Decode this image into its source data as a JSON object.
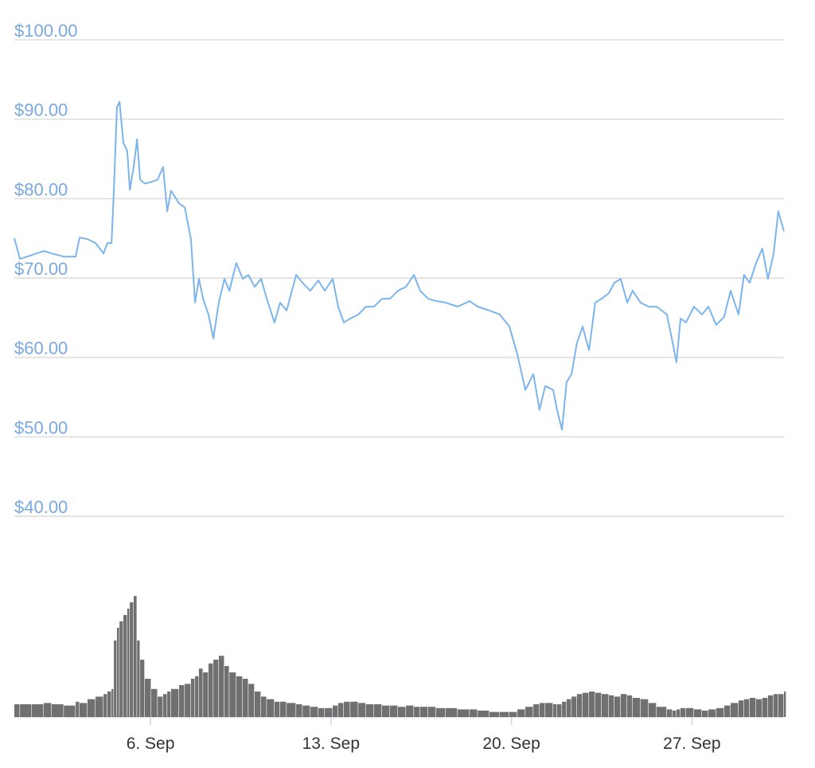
{
  "chart_data": {
    "type": "line",
    "x": [
      0.72,
      0.94,
      1.4,
      1.86,
      2.17,
      2.64,
      3.1,
      3.25,
      3.56,
      3.87,
      4.18,
      4.33,
      4.49,
      4.58,
      4.7,
      4.8,
      4.95,
      5.1,
      5.2,
      5.35,
      5.48,
      5.6,
      5.78,
      6.03,
      6.28,
      6.49,
      6.65,
      6.8,
      7.11,
      7.33,
      7.57,
      7.73,
      7.88,
      8.04,
      8.25,
      8.44,
      8.65,
      8.87,
      9.06,
      9.33,
      9.58,
      9.8,
      10.04,
      10.29,
      10.51,
      10.81,
      11.03,
      11.28,
      11.65,
      11.9,
      12.2,
      12.51,
      12.76,
      13.07,
      13.28,
      13.5,
      13.75,
      14.06,
      14.36,
      14.67,
      14.98,
      15.29,
      15.6,
      15.91,
      16.22,
      16.46,
      16.77,
      17.08,
      17.45,
      17.91,
      18.38,
      18.69,
      19.15,
      19.55,
      19.92,
      20.23,
      20.54,
      20.85,
      21.09,
      21.31,
      21.62,
      21.77,
      21.96,
      22.14,
      22.33,
      22.54,
      22.76,
      23.01,
      23.25,
      23.5,
      23.78,
      23.99,
      24.24,
      24.49,
      24.7,
      25.01,
      25.32,
      25.63,
      26.03,
      26.25,
      26.4,
      26.56,
      26.77,
      27.08,
      27.39,
      27.64,
      27.94,
      28.25,
      28.5,
      28.81,
      29.02,
      29.24,
      29.49,
      29.73,
      29.95,
      30.17,
      30.35,
      30.57
    ],
    "series": [
      {
        "color": "#7cb5ec",
        "values": [
          75.0,
          72.4,
          72.9,
          73.4,
          73.1,
          72.7,
          72.7,
          75.1,
          74.9,
          74.4,
          73.1,
          74.4,
          74.4,
          81.0,
          91.5,
          92.2,
          87.0,
          86.0,
          81.1,
          84.0,
          87.5,
          82.4,
          81.9,
          82.1,
          82.4,
          84.0,
          78.4,
          81.0,
          79.4,
          78.9,
          74.9,
          66.9,
          69.9,
          67.4,
          65.4,
          62.4,
          66.9,
          69.9,
          68.4,
          71.9,
          69.9,
          70.4,
          68.9,
          69.9,
          67.4,
          64.4,
          66.9,
          65.9,
          70.4,
          69.4,
          68.4,
          69.7,
          68.4,
          69.9,
          66.4,
          64.4,
          64.9,
          65.4,
          66.4,
          66.4,
          67.4,
          67.4,
          68.4,
          68.9,
          70.4,
          68.4,
          67.4,
          67.1,
          66.9,
          66.4,
          67.1,
          66.4,
          65.9,
          65.4,
          63.9,
          60.4,
          55.9,
          57.9,
          53.4,
          56.4,
          55.9,
          53.4,
          50.9,
          56.9,
          57.9,
          61.8,
          63.9,
          60.9,
          66.9,
          67.4,
          68.1,
          69.4,
          69.9,
          66.9,
          68.4,
          66.9,
          66.4,
          66.4,
          65.4,
          61.9,
          59.4,
          64.9,
          64.4,
          66.4,
          65.4,
          66.4,
          64.1,
          65.1,
          68.4,
          65.4,
          70.4,
          69.4,
          71.9,
          73.7,
          69.9,
          73.1,
          78.4,
          75.9
        ]
      },
      {
        "type": "bar",
        "axis": "y2",
        "color": "#707070",
        "values": [
          10,
          10,
          10,
          11,
          10,
          9,
          12,
          11,
          14,
          16,
          18,
          20,
          22,
          60,
          70,
          75,
          80,
          85,
          90,
          95,
          60,
          45,
          30,
          22,
          16,
          18,
          20,
          22,
          25,
          26,
          30,
          32,
          38,
          35,
          42,
          45,
          48,
          40,
          35,
          32,
          30,
          26,
          20,
          16,
          14,
          12,
          12,
          11,
          10,
          9,
          8,
          7,
          7,
          9,
          11,
          12,
          12,
          11,
          10,
          10,
          9,
          9,
          8,
          9,
          8,
          8,
          8,
          7,
          7,
          6,
          6,
          5,
          4,
          4,
          4,
          6,
          8,
          10,
          11,
          11,
          10,
          10,
          12,
          14,
          16,
          18,
          19,
          20,
          19,
          18,
          17,
          16,
          18,
          17,
          15,
          14,
          11,
          8,
          6,
          5,
          6,
          7,
          7,
          6,
          5,
          6,
          7,
          9,
          11,
          13,
          14,
          15,
          14,
          15,
          17,
          18,
          18,
          20
        ]
      }
    ],
    "xlim": [
      0.72,
      30.57
    ],
    "xticks": [
      {
        "value": 6,
        "label": "6. Sep"
      },
      {
        "value": 13,
        "label": "13. Sep"
      },
      {
        "value": 20,
        "label": "20. Sep"
      },
      {
        "value": 27,
        "label": "27. Sep"
      }
    ],
    "ylim": [
      40,
      100
    ],
    "yticks": [
      {
        "value": 40,
        "label": "$40.00"
      },
      {
        "value": 50,
        "label": "$50.00"
      },
      {
        "value": 60,
        "label": "$60.00"
      },
      {
        "value": 70,
        "label": "$70.00"
      },
      {
        "value": 80,
        "label": "$80.00"
      },
      {
        "value": 90,
        "label": "$90.00"
      },
      {
        "value": 100,
        "label": "$100.00"
      }
    ],
    "y2lim": [
      0,
      100
    ],
    "grid": true
  }
}
